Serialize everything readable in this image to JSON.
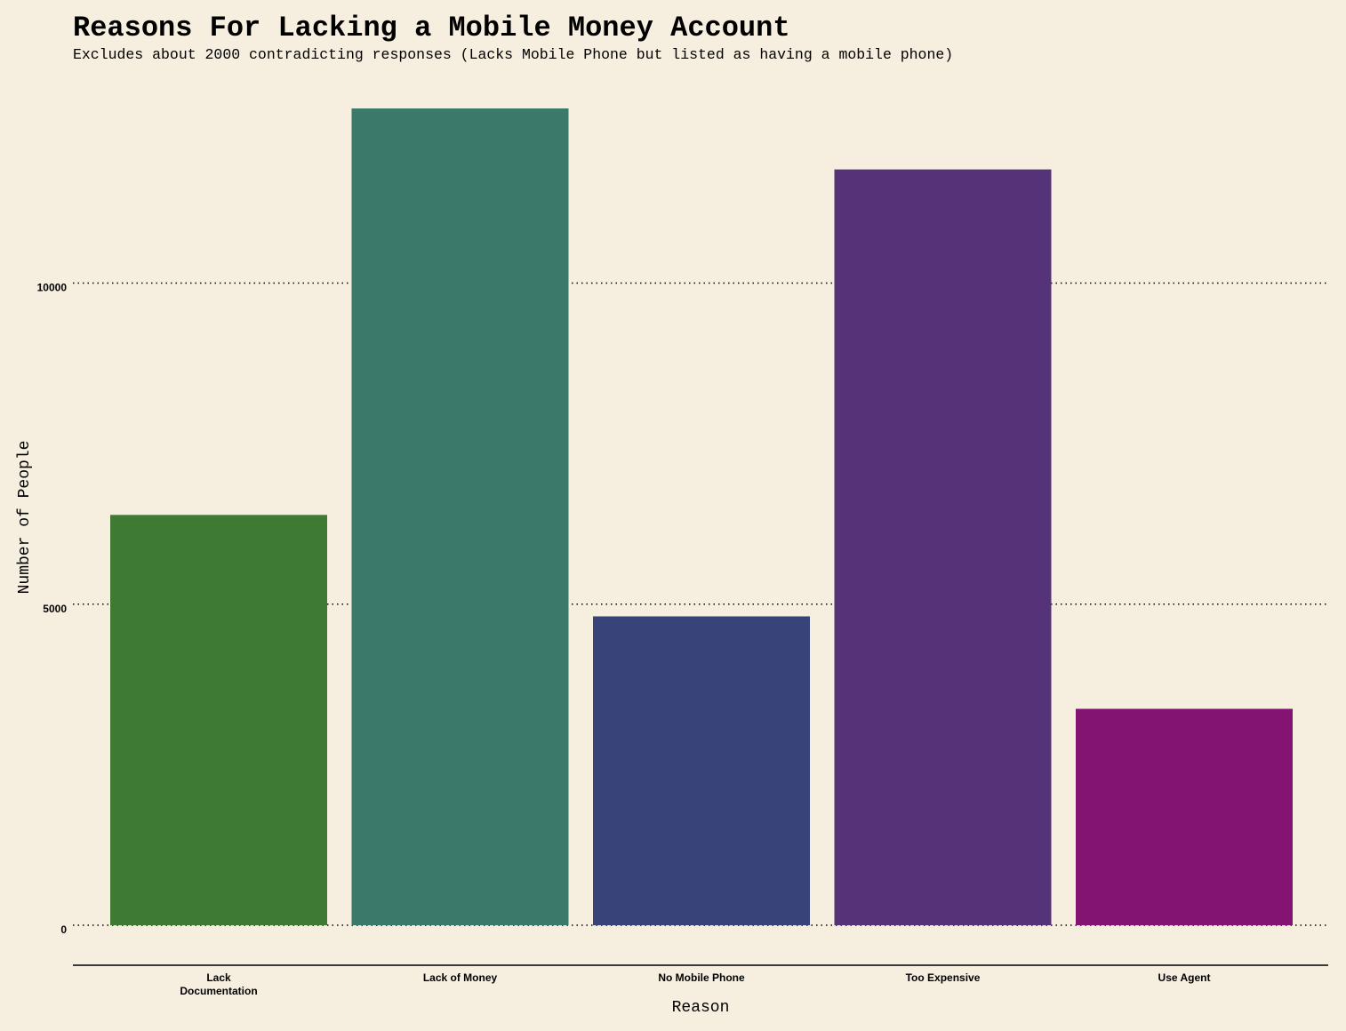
{
  "chart_data": {
    "type": "bar",
    "title": "Reasons For Lacking a Mobile Money Account",
    "subtitle": "Excludes about 2000 contradicting responses (Lacks Mobile Phone but listed as having a mobile phone)",
    "xlabel": "Reason",
    "ylabel": "Number of People",
    "categories": [
      "Lack\nDocumentation",
      "Lack of Money",
      "No Mobile Phone",
      "Too Expensive",
      "Use Agent"
    ],
    "values": [
      6390,
      12720,
      4810,
      11770,
      3370
    ],
    "colors": [
      "#3f7a34",
      "#3b7a6b",
      "#374379",
      "#563279",
      "#831471"
    ],
    "yticks": [
      0,
      5000,
      10000
    ],
    "ylim": [
      0,
      12720
    ],
    "grid": "horizontal-dotted",
    "legend": "none"
  }
}
